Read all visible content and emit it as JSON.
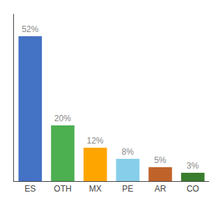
{
  "chart_data": {
    "type": "bar",
    "categories": [
      "ES",
      "OTH",
      "MX",
      "PE",
      "AR",
      "CO"
    ],
    "values": [
      52,
      20,
      12,
      8,
      5,
      3
    ],
    "value_labels": [
      "52%",
      "20%",
      "12%",
      "8%",
      "5%",
      "3%"
    ],
    "colors": [
      "#4472C4",
      "#4CAF50",
      "#FFA500",
      "#87CEEB",
      "#C0632A",
      "#3A7D2E"
    ],
    "ylim": [
      0,
      60
    ],
    "data_labels": true,
    "tick_labels": "x",
    "grid": false
  }
}
